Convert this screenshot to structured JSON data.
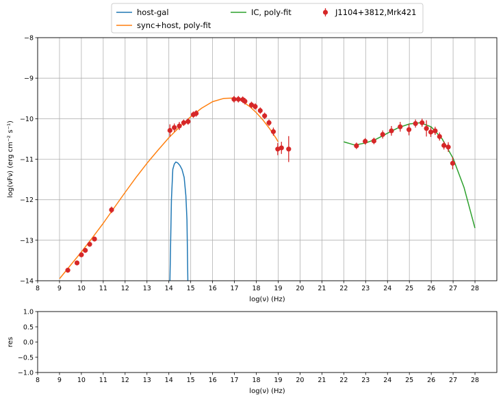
{
  "chart_data": [
    {
      "type": "scatter",
      "xlabel": "log(ν)  (Hz)",
      "ylabel": "log(νFν)  (erg cm⁻²  s⁻¹)",
      "xlim": [
        8,
        29
      ],
      "ylim": [
        -14,
        -8
      ],
      "xticks": [
        8,
        9,
        10,
        11,
        12,
        13,
        14,
        15,
        16,
        17,
        18,
        19,
        20,
        21,
        22,
        23,
        24,
        25,
        26,
        27,
        28
      ],
      "yticks": [
        -14,
        -13,
        -12,
        -11,
        -10,
        -9,
        -8
      ],
      "ytick_labels": [
        "−14",
        "−13",
        "−12",
        "−11",
        "−10",
        "−9",
        "−8"
      ],
      "grid": true,
      "legend_position": "top-center, above plot",
      "series": [
        {
          "name": "host-gal",
          "kind": "line",
          "color": "#1f77b4",
          "x": [
            14.05,
            14.12,
            14.18,
            14.25,
            14.32,
            14.4,
            14.5,
            14.6,
            14.7,
            14.78,
            14.83,
            14.87
          ],
          "y": [
            -14,
            -12.0,
            -11.25,
            -11.12,
            -11.07,
            -11.09,
            -11.15,
            -11.25,
            -11.45,
            -11.9,
            -12.5,
            -14
          ]
        },
        {
          "name": "sync+host, poly-fit",
          "kind": "line",
          "color": "#ff7f0e",
          "x": [
            9.0,
            9.5,
            10.0,
            10.5,
            11.0,
            11.5,
            12.0,
            12.5,
            13.0,
            13.5,
            14.0,
            14.5,
            15.0,
            15.5,
            16.0,
            16.5,
            16.9,
            17.3,
            17.7,
            18.0,
            18.3,
            18.6,
            18.9,
            19.0
          ],
          "y": [
            -13.95,
            -13.62,
            -13.29,
            -12.94,
            -12.58,
            -12.2,
            -11.82,
            -11.45,
            -11.1,
            -10.78,
            -10.47,
            -10.2,
            -9.95,
            -9.74,
            -9.58,
            -9.5,
            -9.49,
            -9.55,
            -9.7,
            -9.85,
            -10.03,
            -10.24,
            -10.48,
            -10.57
          ]
        },
        {
          "name": "IC, poly-fit",
          "kind": "line",
          "color": "#2ca02c",
          "x": [
            22.0,
            22.5,
            23.0,
            23.5,
            24.0,
            24.5,
            25.0,
            25.5,
            26.0,
            26.5,
            27.0,
            27.5,
            28.0
          ],
          "y": [
            -10.57,
            -10.65,
            -10.6,
            -10.5,
            -10.36,
            -10.22,
            -10.13,
            -10.1,
            -10.2,
            -10.5,
            -10.98,
            -11.7,
            -12.7
          ]
        },
        {
          "name": "J1104+3812,Mrk421",
          "kind": "errorbar",
          "color": "#d62728",
          "x": [
            9.38,
            9.8,
            10.0,
            10.18,
            10.38,
            10.6,
            11.38,
            14.05,
            14.25,
            14.48,
            14.68,
            14.88,
            15.12,
            15.25,
            16.98,
            17.18,
            17.38,
            17.48,
            17.78,
            17.95,
            18.18,
            18.38,
            18.58,
            18.78,
            18.98,
            19.15,
            19.48,
            22.58,
            22.98,
            23.38,
            23.78,
            24.18,
            24.58,
            24.98,
            25.28,
            25.58,
            25.78,
            25.98,
            26.18,
            26.38,
            26.58,
            26.78,
            26.98
          ],
          "y": [
            -13.74,
            -13.56,
            -13.36,
            -13.25,
            -13.1,
            -12.97,
            -12.25,
            -10.29,
            -10.22,
            -10.18,
            -10.1,
            -10.07,
            -9.9,
            -9.87,
            -9.52,
            -9.52,
            -9.53,
            -9.57,
            -9.66,
            -9.7,
            -9.8,
            -9.93,
            -10.1,
            -10.32,
            -10.75,
            -10.72,
            -10.75,
            -10.67,
            -10.56,
            -10.55,
            -10.39,
            -10.3,
            -10.2,
            -10.27,
            -10.12,
            -10.1,
            -10.24,
            -10.33,
            -10.3,
            -10.44,
            -10.66,
            -10.7,
            -11.1
          ],
          "yerr": [
            0.06,
            0.06,
            0.06,
            0.06,
            0.06,
            0.06,
            0.08,
            0.15,
            0.1,
            0.1,
            0.08,
            0.08,
            0.08,
            0.08,
            0.08,
            0.08,
            0.08,
            0.08,
            0.08,
            0.08,
            0.08,
            0.08,
            0.08,
            0.1,
            0.15,
            0.15,
            0.32,
            0.08,
            0.08,
            0.08,
            0.1,
            0.12,
            0.12,
            0.14,
            0.1,
            0.1,
            0.2,
            0.12,
            0.1,
            0.1,
            0.1,
            0.12,
            0.15
          ]
        }
      ]
    },
    {
      "type": "scatter",
      "xlabel": "log(ν)  (Hz)",
      "ylabel": "res",
      "xlim": [
        8,
        29
      ],
      "ylim": [
        -1.0,
        1.0
      ],
      "xticks": [
        8,
        9,
        10,
        11,
        12,
        13,
        14,
        15,
        16,
        17,
        18,
        19,
        20,
        21,
        22,
        23,
        24,
        25,
        26,
        27,
        28
      ],
      "yticks": [
        -1.0,
        -0.5,
        0.0,
        0.5,
        1.0
      ],
      "ytick_labels": [
        "−1.0",
        "−0.5",
        "0.0",
        "0.5",
        "1.0"
      ],
      "grid": false,
      "series": []
    }
  ]
}
